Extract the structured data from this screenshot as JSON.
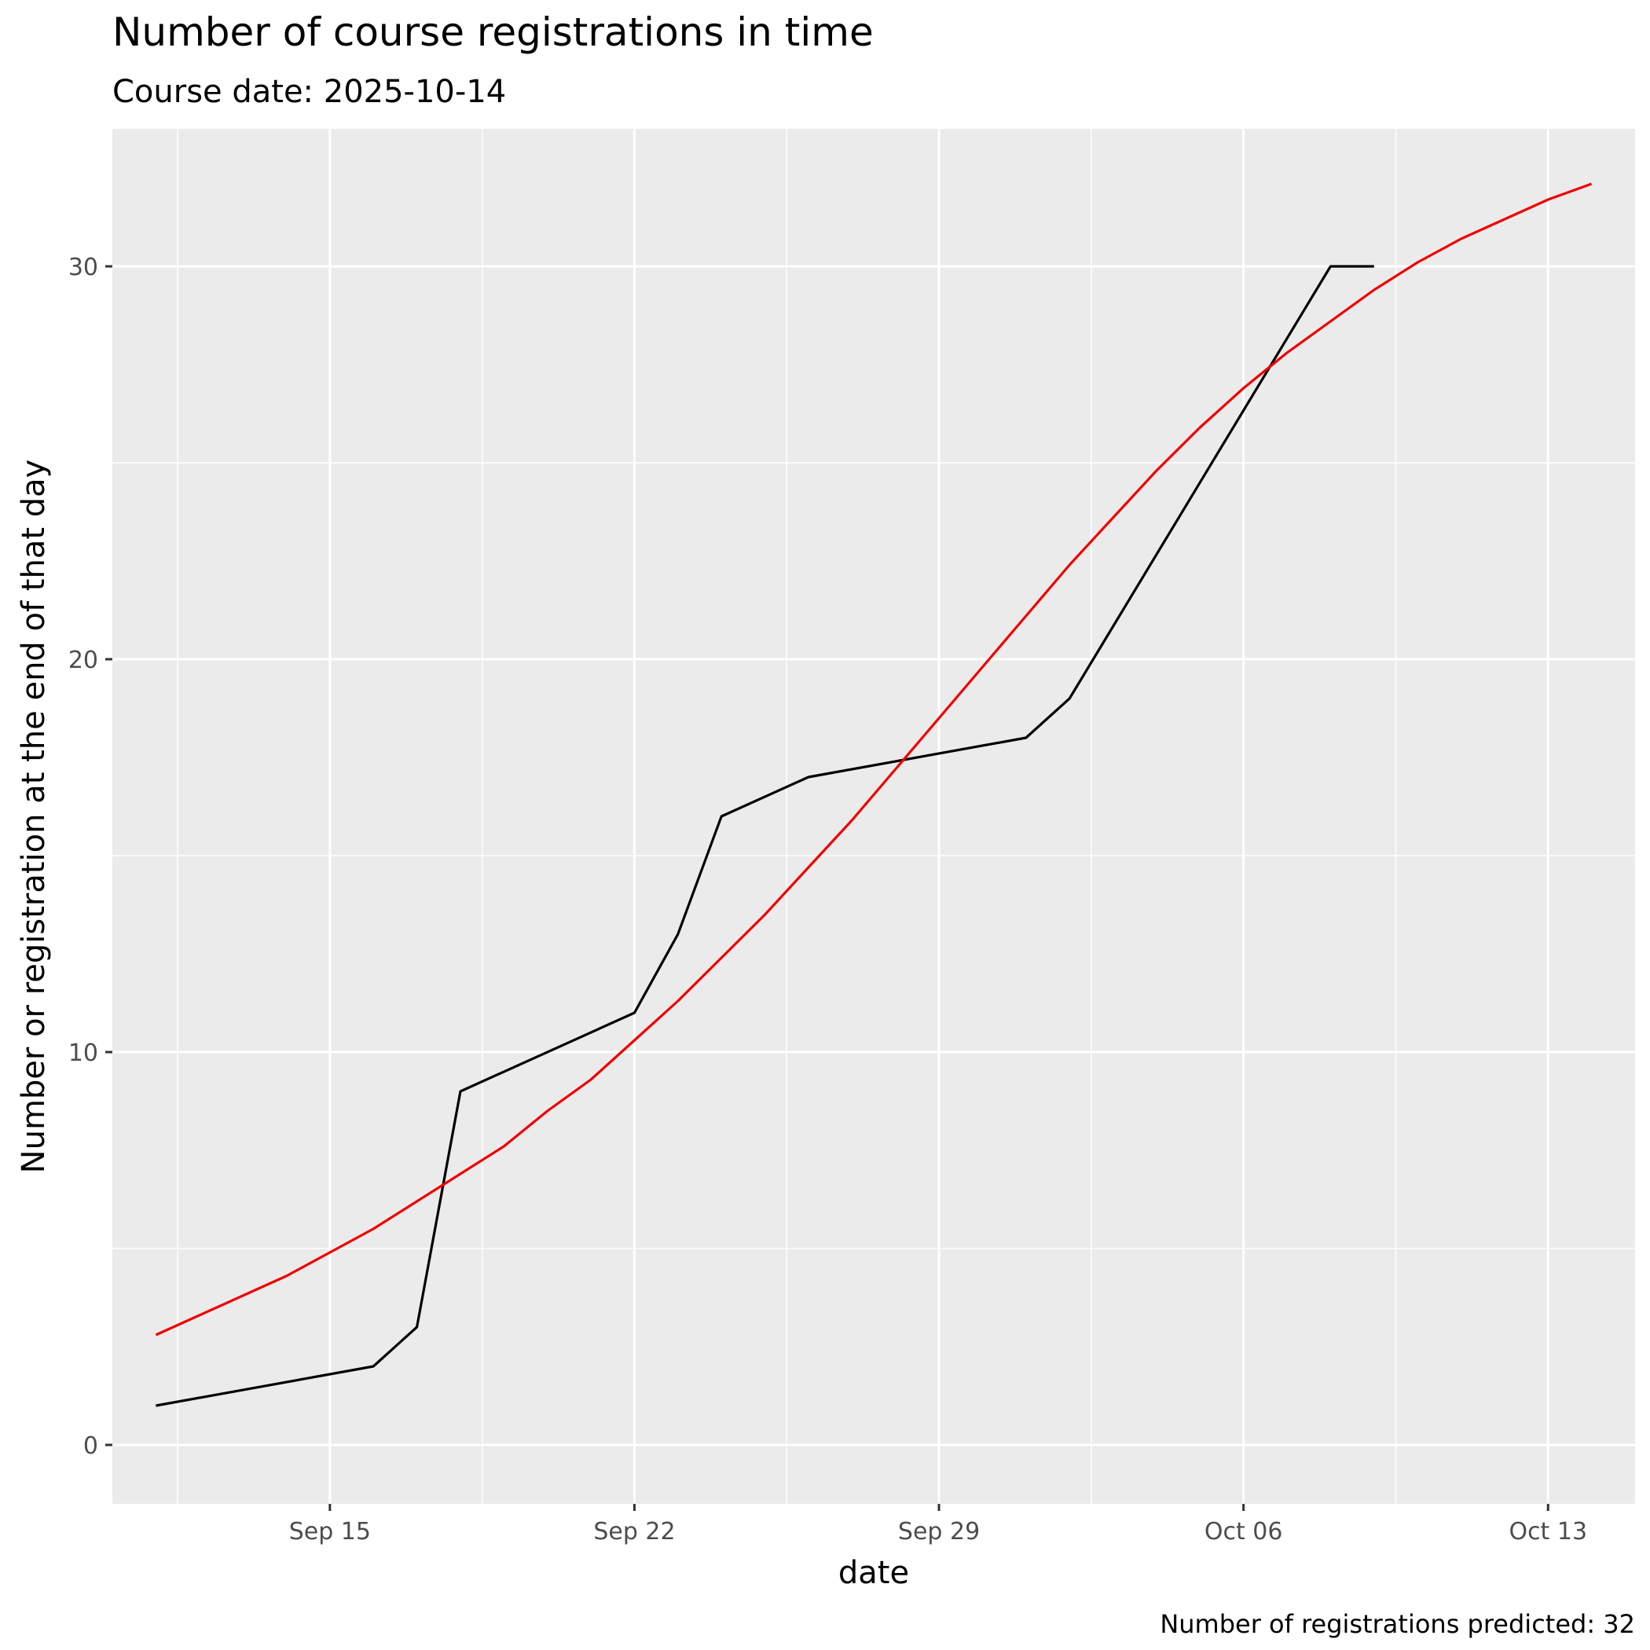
{
  "chart_data": {
    "type": "line",
    "title": "Number of course registrations in time",
    "subtitle": "Course date: 2025-10-14",
    "xlabel": "date",
    "ylabel": "Number or registration at the end of that day",
    "caption": "Number of registrations predicted: 32",
    "x_ticks": [
      {
        "date": "2025-09-15",
        "label": "Sep 15"
      },
      {
        "date": "2025-09-22",
        "label": "Sep 22"
      },
      {
        "date": "2025-09-29",
        "label": "Sep 29"
      },
      {
        "date": "2025-10-06",
        "label": "Oct 06"
      },
      {
        "date": "2025-10-13",
        "label": "Oct 13"
      }
    ],
    "y_ticks": [
      0,
      10,
      20,
      30
    ],
    "xlim": [
      "2025-09-10",
      "2025-10-15"
    ],
    "ylim": [
      -1.5,
      33.5
    ],
    "grid": true,
    "colors": {
      "panel": "#ebebeb",
      "grid": "#ffffff",
      "actual": "#000000",
      "predicted": "#ee0000"
    },
    "series": [
      {
        "style": "actual",
        "points": [
          [
            "2025-09-11",
            1
          ],
          [
            "2025-09-16",
            2
          ],
          [
            "2025-09-17",
            3
          ],
          [
            "2025-09-18",
            9
          ],
          [
            "2025-09-22",
            11
          ],
          [
            "2025-09-23",
            13
          ],
          [
            "2025-09-24",
            16
          ],
          [
            "2025-09-26",
            17
          ],
          [
            "2025-10-01",
            18
          ],
          [
            "2025-10-02",
            19
          ],
          [
            "2025-10-08",
            30
          ],
          [
            "2025-10-09",
            30
          ]
        ]
      },
      {
        "style": "predicted",
        "points": [
          [
            "2025-09-11",
            2.8
          ],
          [
            "2025-09-12",
            3.3
          ],
          [
            "2025-09-13",
            3.8
          ],
          [
            "2025-09-14",
            4.3
          ],
          [
            "2025-09-15",
            4.9
          ],
          [
            "2025-09-16",
            5.5
          ],
          [
            "2025-09-17",
            6.2
          ],
          [
            "2025-09-18",
            6.9
          ],
          [
            "2025-09-19",
            7.6
          ],
          [
            "2025-09-20",
            8.5
          ],
          [
            "2025-09-21",
            9.3
          ],
          [
            "2025-09-22",
            10.3
          ],
          [
            "2025-09-23",
            11.3
          ],
          [
            "2025-09-24",
            12.4
          ],
          [
            "2025-09-25",
            13.5
          ],
          [
            "2025-09-26",
            14.7
          ],
          [
            "2025-09-27",
            15.9
          ],
          [
            "2025-09-28",
            17.2
          ],
          [
            "2025-09-29",
            18.5
          ],
          [
            "2025-09-30",
            19.8
          ],
          [
            "2025-10-01",
            21.1
          ],
          [
            "2025-10-02",
            22.4
          ],
          [
            "2025-10-03",
            23.6
          ],
          [
            "2025-10-04",
            24.8
          ],
          [
            "2025-10-05",
            25.9
          ],
          [
            "2025-10-06",
            26.9
          ],
          [
            "2025-10-07",
            27.8
          ],
          [
            "2025-10-08",
            28.6
          ],
          [
            "2025-10-09",
            29.4
          ],
          [
            "2025-10-10",
            30.1
          ],
          [
            "2025-10-11",
            30.7
          ],
          [
            "2025-10-12",
            31.2
          ],
          [
            "2025-10-13",
            31.7
          ],
          [
            "2025-10-14",
            32.1
          ]
        ]
      }
    ]
  }
}
